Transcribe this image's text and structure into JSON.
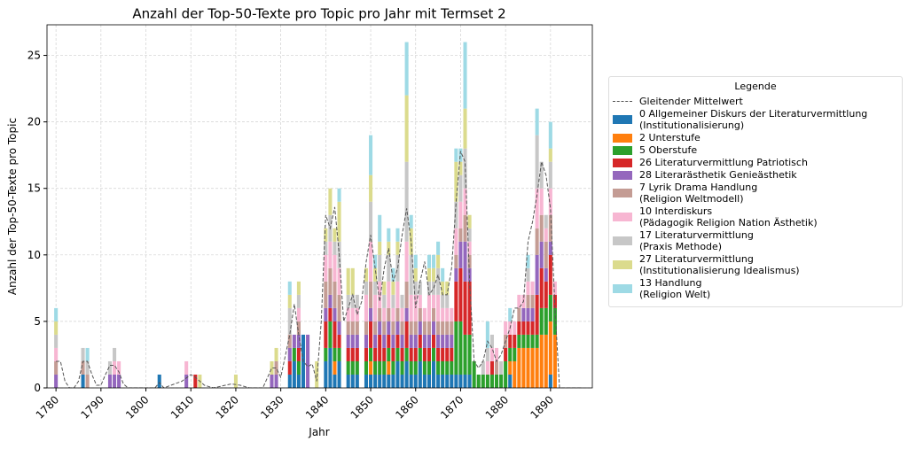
{
  "chart_data": {
    "type": "bar",
    "title": "Anzahl der Top-50-Texte pro Topic pro Jahr mit Termset 2",
    "x_label": "Jahr",
    "y_label": "Anzahl der Top-50-Texte pro Topic",
    "legend_title": "Legende",
    "stacked": true,
    "grid": true,
    "xlim": [
      1778,
      1899.3
    ],
    "ylim": [
      0,
      27.3
    ],
    "xticks": [
      1780,
      1790,
      1800,
      1810,
      1820,
      1830,
      1840,
      1850,
      1860,
      1870,
      1880,
      1890
    ],
    "yticks": [
      0,
      5,
      10,
      15,
      20,
      25
    ],
    "x": [
      1780,
      1786,
      1787,
      1792,
      1793,
      1794,
      1803,
      1809,
      1811,
      1812,
      1820,
      1828,
      1829,
      1832,
      1833,
      1834,
      1835,
      1836,
      1838,
      1840,
      1841,
      1842,
      1843,
      1845,
      1846,
      1847,
      1849,
      1850,
      1851,
      1852,
      1853,
      1854,
      1855,
      1856,
      1857,
      1858,
      1859,
      1860,
      1861,
      1862,
      1863,
      1864,
      1865,
      1866,
      1867,
      1868,
      1869,
      1870,
      1871,
      1872,
      1873,
      1874,
      1875,
      1876,
      1877,
      1878,
      1879,
      1880,
      1881,
      1882,
      1883,
      1884,
      1885,
      1886,
      1887,
      1888,
      1889,
      1890,
      1891
    ],
    "moving_average": {
      "name": "Gleitender Mittelwert",
      "color": "#555555",
      "x": [
        1780,
        1781,
        1782,
        1783,
        1784,
        1785,
        1786,
        1787,
        1788,
        1789,
        1790,
        1791,
        1792,
        1793,
        1794,
        1795,
        1796,
        1802,
        1803,
        1804,
        1808,
        1810,
        1811,
        1813,
        1815,
        1819,
        1821,
        1823,
        1826,
        1828,
        1829,
        1830,
        1832,
        1833,
        1834,
        1835,
        1836,
        1837,
        1838,
        1839,
        1840,
        1841,
        1842,
        1843,
        1844,
        1845,
        1846,
        1847,
        1848,
        1849,
        1850,
        1851,
        1852,
        1853,
        1854,
        1855,
        1856,
        1857,
        1858,
        1859,
        1860,
        1861,
        1862,
        1863,
        1864,
        1865,
        1866,
        1867,
        1868,
        1869,
        1870,
        1871,
        1872,
        1873,
        1874,
        1875,
        1876,
        1877,
        1878,
        1879,
        1880,
        1881,
        1882,
        1883,
        1884,
        1885,
        1886,
        1887,
        1888,
        1889,
        1890,
        1891,
        1892,
        1897
      ],
      "values": [
        2,
        2,
        0.5,
        0,
        0,
        0.5,
        2,
        2,
        1,
        0.2,
        0.2,
        1,
        1.7,
        1.7,
        1.2,
        0.3,
        0,
        0,
        0.4,
        0,
        0.5,
        1,
        0.8,
        0.2,
        0,
        0.3,
        0.2,
        0,
        0,
        1.5,
        1.5,
        0.8,
        4,
        6.3,
        4,
        2,
        1.6,
        1.8,
        0.5,
        5,
        13,
        12,
        13.6,
        10,
        5,
        6,
        7,
        5.5,
        6.5,
        9.5,
        11.5,
        9,
        6.5,
        9,
        10.5,
        8,
        9,
        11.5,
        13.5,
        11,
        6,
        8,
        9.5,
        7,
        7.5,
        8.5,
        7,
        7,
        9,
        14,
        17.8,
        17,
        8,
        2,
        1.5,
        2,
        3.5,
        3,
        2,
        2.5,
        3.5,
        4.5,
        6,
        6,
        6.5,
        11,
        12.5,
        14.5,
        17,
        16,
        13.5,
        6,
        0,
        0
      ]
    },
    "series": [
      {
        "name": "0 Allgemeiner Diskurs der Literaturvermittlung\n(Institutionalisierung)",
        "color": "#1f77b4",
        "values": [
          0,
          1,
          0,
          0,
          0,
          0,
          1,
          0,
          0,
          0,
          0,
          0,
          0,
          1,
          2,
          1,
          4,
          0,
          0,
          2,
          3,
          1,
          2,
          1,
          1,
          1,
          1,
          1,
          1,
          1,
          1,
          1,
          1,
          2,
          1,
          2,
          1,
          1,
          2,
          1,
          1,
          2,
          1,
          1,
          1,
          1,
          1,
          1,
          1,
          1,
          0,
          0,
          0,
          0,
          0,
          0,
          0,
          0,
          1,
          0,
          0,
          0,
          0,
          0,
          0,
          0,
          0,
          1,
          0
        ]
      },
      {
        "name": "2 Unterstufe",
        "color": "#ff7f0e",
        "values": [
          0,
          0,
          0,
          0,
          0,
          0,
          0,
          0,
          0,
          0,
          0,
          0,
          0,
          0,
          0,
          0,
          0,
          0,
          0,
          0,
          0,
          1,
          0,
          0,
          0,
          0,
          0,
          1,
          0,
          0,
          0,
          1,
          0,
          0,
          0,
          0,
          0,
          0,
          0,
          0,
          0,
          0,
          0,
          0,
          0,
          0,
          0,
          0,
          0,
          0,
          0,
          0,
          0,
          0,
          0,
          0,
          0,
          0,
          1,
          2,
          3,
          3,
          3,
          3,
          3,
          4,
          4,
          4,
          4
        ]
      },
      {
        "name": "5 Oberstufe",
        "color": "#2ca02c",
        "values": [
          0,
          0,
          0,
          0,
          0,
          0,
          0,
          0,
          0,
          0,
          0,
          0,
          0,
          0,
          1,
          1,
          0,
          0,
          0,
          1,
          2,
          1,
          1,
          1,
          1,
          1,
          1,
          1,
          1,
          1,
          1,
          1,
          1,
          1,
          1,
          1,
          1,
          1,
          1,
          1,
          1,
          1,
          1,
          1,
          1,
          1,
          4,
          4,
          3,
          3,
          2,
          1,
          1,
          1,
          1,
          1,
          1,
          2,
          1,
          1,
          1,
          1,
          1,
          1,
          1,
          2,
          2,
          2,
          2
        ]
      },
      {
        "name": "26 Literaturvermittlung Patriotisch",
        "color": "#d62728",
        "values": [
          0,
          0,
          0,
          0,
          0,
          0,
          0,
          0,
          1,
          0,
          0,
          0,
          0,
          1,
          0,
          1,
          0,
          0,
          0,
          2,
          1,
          2,
          1,
          1,
          1,
          1,
          1,
          2,
          1,
          2,
          1,
          1,
          1,
          1,
          1,
          2,
          1,
          1,
          1,
          1,
          1,
          1,
          1,
          1,
          1,
          1,
          3,
          4,
          4,
          4,
          0,
          0,
          0,
          0,
          1,
          0,
          0,
          1,
          1,
          1,
          1,
          1,
          1,
          1,
          3,
          3,
          2,
          3,
          1
        ]
      },
      {
        "name": "28 Literarästhetik Genieästhetik",
        "color": "#9467bd",
        "values": [
          1,
          0,
          0,
          1,
          1,
          1,
          0,
          1,
          0,
          0,
          0,
          1,
          1,
          1,
          1,
          1,
          0,
          4,
          0,
          1,
          1,
          1,
          1,
          1,
          1,
          1,
          1,
          1,
          1,
          1,
          1,
          1,
          1,
          1,
          1,
          1,
          1,
          1,
          1,
          1,
          1,
          1,
          1,
          1,
          1,
          1,
          1,
          2,
          3,
          1,
          0,
          0,
          0,
          0,
          0,
          0,
          0,
          0,
          0,
          0,
          0,
          1,
          1,
          1,
          3,
          2,
          1,
          1,
          0
        ]
      },
      {
        "name": "7 Lyrik Drama Handlung\n(Religion Weltmodell)",
        "color": "#c49c94",
        "values": [
          1,
          1,
          1,
          0,
          0,
          0,
          0,
          0,
          0,
          0,
          0,
          0,
          1,
          1,
          0,
          1,
          0,
          0,
          0,
          2,
          2,
          2,
          2,
          1,
          1,
          1,
          1,
          2,
          1,
          1,
          1,
          1,
          1,
          1,
          1,
          2,
          1,
          1,
          1,
          1,
          1,
          1,
          1,
          1,
          1,
          1,
          1,
          1,
          2,
          1,
          0,
          0,
          0,
          0,
          0,
          1,
          0,
          1,
          0,
          0,
          1,
          0,
          1,
          1,
          2,
          2,
          2,
          2,
          0
        ]
      },
      {
        "name": "10 Interdiskurs\n(Pädagogik Religion Nation Ästhetik)",
        "color": "#f7b6d2",
        "values": [
          1,
          0,
          0,
          0,
          1,
          1,
          0,
          1,
          0,
          0,
          0,
          0,
          0,
          0,
          0,
          1,
          0,
          0,
          0,
          2,
          2,
          2,
          2,
          1,
          1,
          1,
          2,
          3,
          2,
          2,
          1,
          2,
          1,
          2,
          1,
          3,
          2,
          2,
          1,
          1,
          2,
          1,
          2,
          1,
          1,
          1,
          2,
          2,
          2,
          1,
          0,
          0,
          0,
          1,
          1,
          1,
          0,
          1,
          1,
          1,
          1,
          1,
          1,
          1,
          3,
          2,
          1,
          2,
          1
        ]
      },
      {
        "name": "17 Literaturvermittlung\n(Praxis Methode)",
        "color": "#c7c7c7",
        "values": [
          1,
          1,
          1,
          1,
          1,
          0,
          0,
          0,
          0,
          0,
          0,
          0,
          0,
          2,
          0,
          1,
          0,
          0,
          0,
          1,
          2,
          1,
          2,
          1,
          1,
          1,
          1,
          3,
          1,
          2,
          1,
          2,
          1,
          2,
          1,
          6,
          3,
          1,
          1,
          0,
          1,
          1,
          2,
          1,
          1,
          0,
          2,
          2,
          3,
          1,
          0,
          0,
          1,
          1,
          1,
          0,
          1,
          0,
          0,
          0,
          0,
          0,
          1,
          0,
          4,
          2,
          1,
          2,
          0
        ]
      },
      {
        "name": "27 Literaturvermittlung\n(Institutionalisierung Idealismus)",
        "color": "#dbdb8d",
        "values": [
          1,
          0,
          0,
          0,
          0,
          0,
          0,
          0,
          0,
          1,
          1,
          1,
          1,
          1,
          0,
          1,
          0,
          0,
          2,
          1,
          2,
          1,
          3,
          2,
          2,
          0,
          1,
          2,
          1,
          1,
          1,
          1,
          1,
          1,
          0,
          5,
          2,
          1,
          0,
          0,
          1,
          1,
          1,
          1,
          1,
          0,
          3,
          1,
          3,
          1,
          0,
          0,
          0,
          0,
          0,
          0,
          0,
          0,
          0,
          0,
          0,
          0,
          0,
          0,
          0,
          0,
          0,
          1,
          0
        ]
      },
      {
        "name": "13 Handlung\n(Religion Welt)",
        "color": "#9edae5",
        "values": [
          1,
          0,
          1,
          0,
          0,
          0,
          0,
          0,
          0,
          0,
          0,
          0,
          0,
          1,
          0,
          0,
          0,
          0,
          0,
          0,
          0,
          0,
          1,
          0,
          0,
          0,
          0,
          3,
          1,
          2,
          0,
          1,
          1,
          1,
          0,
          4,
          1,
          1,
          0,
          0,
          1,
          1,
          1,
          1,
          0,
          0,
          1,
          1,
          5,
          0,
          0,
          0,
          0,
          2,
          0,
          0,
          0,
          0,
          1,
          0,
          0,
          0,
          1,
          0,
          2,
          0,
          0,
          2,
          0
        ]
      }
    ]
  }
}
